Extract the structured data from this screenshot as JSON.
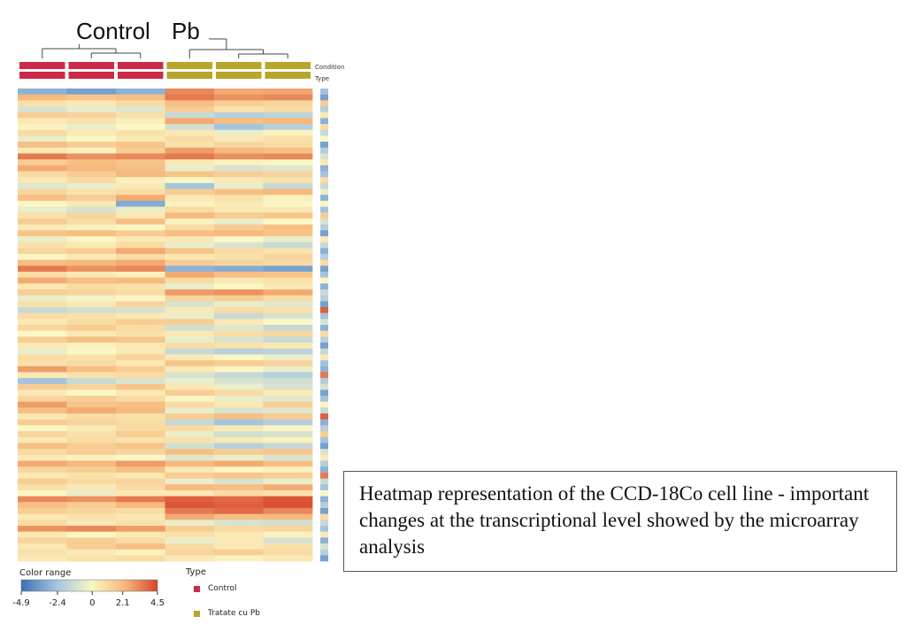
{
  "chart_data": {
    "type": "heatmap",
    "title": "",
    "groups": [
      "Control",
      "Pb"
    ],
    "columns": [
      "Control",
      "Control",
      "Control",
      "Tratate cu Pb",
      "Tratate cu Pb",
      "Tratate cu Pb"
    ],
    "annotation_tracks": [
      "Condition",
      "Type"
    ],
    "color_range": {
      "title": "Color range",
      "min": -4.9,
      "max": 4.5,
      "ticks": [
        "-4.9",
        "-2.4",
        "0",
        "2.1",
        "4.5"
      ]
    },
    "row_count": 80,
    "type_legend": {
      "title": "Type",
      "items": [
        {
          "label": "Control",
          "color": "#cc2a4a"
        },
        {
          "label": "Tratate cu Pb",
          "color": "#b8a52a"
        }
      ]
    },
    "values": [
      [
        -3.0,
        -3.5,
        -3.0,
        3.2,
        2.5,
        2.6
      ],
      [
        2.2,
        1.8,
        2.0,
        3.5,
        3.0,
        3.2
      ],
      [
        0.8,
        0.5,
        1.0,
        2.0,
        1.5,
        1.2
      ],
      [
        -1.0,
        -0.5,
        -0.8,
        1.5,
        0.8,
        1.0
      ],
      [
        1.5,
        1.2,
        0.8,
        -1.5,
        -2.0,
        -1.8
      ],
      [
        0.5,
        0.8,
        0.3,
        2.5,
        2.0,
        2.2
      ],
      [
        0.2,
        -0.5,
        0.0,
        -1.2,
        -2.5,
        -2.0
      ],
      [
        1.0,
        0.5,
        0.8,
        0.5,
        -0.5,
        0.2
      ],
      [
        -0.5,
        0.0,
        0.5,
        1.0,
        0.5,
        0.8
      ],
      [
        2.0,
        1.5,
        1.8,
        0.8,
        1.2,
        1.0
      ],
      [
        0.5,
        0.2,
        1.5,
        2.8,
        2.2,
        2.0
      ],
      [
        3.5,
        3.0,
        3.2,
        3.5,
        3.0,
        3.2
      ],
      [
        1.5,
        2.0,
        1.8,
        0.5,
        0.2,
        0.0
      ],
      [
        2.5,
        2.2,
        2.0,
        -0.5,
        -1.0,
        -0.8
      ],
      [
        1.0,
        1.5,
        2.2,
        1.8,
        1.5,
        1.2
      ],
      [
        0.5,
        1.0,
        0.2,
        0.0,
        0.5,
        0.8
      ],
      [
        -0.8,
        -0.5,
        0.5,
        -2.5,
        -0.5,
        -1.5
      ],
      [
        1.2,
        0.8,
        1.0,
        1.5,
        2.0,
        2.2
      ],
      [
        2.0,
        1.5,
        2.5,
        0.5,
        0.8,
        0.2
      ],
      [
        0.0,
        0.5,
        -3.2,
        0.2,
        0.5,
        0.0
      ],
      [
        -0.5,
        -1.0,
        -0.5,
        1.0,
        0.5,
        0.5
      ],
      [
        0.8,
        1.2,
        0.5,
        2.2,
        1.5,
        1.8
      ],
      [
        1.5,
        1.0,
        2.0,
        0.2,
        -0.5,
        0.0
      ],
      [
        0.5,
        0.2,
        0.0,
        1.0,
        1.5,
        2.0
      ],
      [
        1.8,
        2.0,
        1.5,
        2.0,
        2.2,
        1.8
      ],
      [
        -0.5,
        0.0,
        0.5,
        0.5,
        0.0,
        -0.5
      ],
      [
        0.8,
        0.5,
        1.0,
        -0.5,
        -1.0,
        -1.5
      ],
      [
        1.2,
        1.5,
        2.5,
        1.8,
        1.0,
        0.8
      ],
      [
        0.0,
        0.5,
        1.0,
        0.5,
        0.8,
        1.2
      ],
      [
        2.0,
        2.2,
        2.5,
        1.5,
        1.2,
        1.0
      ],
      [
        3.5,
        3.0,
        3.2,
        -3.0,
        -3.2,
        -3.5
      ],
      [
        1.0,
        0.5,
        0.2,
        2.5,
        2.0,
        1.8
      ],
      [
        2.5,
        2.0,
        2.2,
        1.0,
        0.5,
        0.8
      ],
      [
        0.5,
        1.0,
        0.8,
        -0.5,
        0.0,
        0.5
      ],
      [
        1.5,
        1.2,
        1.0,
        2.8,
        3.0,
        2.5
      ],
      [
        -0.5,
        -0.2,
        0.0,
        1.2,
        1.5,
        1.0
      ],
      [
        0.8,
        0.5,
        1.2,
        -1.0,
        -0.5,
        -0.8
      ],
      [
        -1.5,
        -1.2,
        -1.0,
        0.5,
        1.0,
        0.8
      ],
      [
        1.0,
        0.8,
        0.5,
        -0.5,
        -1.5,
        -1.0
      ],
      [
        0.5,
        1.0,
        1.5,
        1.5,
        0.5,
        0.0
      ],
      [
        1.2,
        1.5,
        1.0,
        -1.2,
        -0.8,
        -1.5
      ],
      [
        0.0,
        0.5,
        0.8,
        0.5,
        1.0,
        1.2
      ],
      [
        1.5,
        2.0,
        1.8,
        -0.5,
        -1.0,
        -1.5
      ],
      [
        0.5,
        0.2,
        0.5,
        1.0,
        0.8,
        0.5
      ],
      [
        -0.5,
        0.0,
        0.5,
        -1.5,
        -2.0,
        -1.8
      ],
      [
        1.0,
        0.8,
        1.2,
        0.5,
        0.0,
        -0.5
      ],
      [
        0.8,
        1.0,
        0.5,
        1.8,
        1.5,
        1.2
      ],
      [
        2.8,
        2.0,
        1.5,
        0.5,
        0.0,
        -0.5
      ],
      [
        0.5,
        0.8,
        1.0,
        -1.0,
        -1.5,
        -2.0
      ],
      [
        -2.5,
        -1.5,
        -1.0,
        -0.5,
        -1.0,
        -1.2
      ],
      [
        1.5,
        1.2,
        1.8,
        0.5,
        -0.5,
        -1.0
      ],
      [
        0.5,
        0.0,
        0.5,
        1.5,
        1.0,
        0.5
      ],
      [
        1.2,
        1.5,
        1.0,
        0.0,
        -0.5,
        -0.8
      ],
      [
        2.8,
        1.8,
        2.0,
        1.0,
        0.5,
        1.5
      ],
      [
        2.0,
        2.5,
        2.2,
        -0.5,
        -1.0,
        -0.8
      ],
      [
        0.5,
        1.0,
        0.8,
        1.5,
        2.0,
        1.5
      ],
      [
        1.5,
        1.2,
        1.0,
        -1.5,
        -2.5,
        -2.0
      ],
      [
        0.0,
        0.5,
        1.0,
        1.0,
        0.5,
        0.0
      ],
      [
        1.2,
        0.8,
        1.5,
        -0.5,
        -1.2,
        -1.0
      ],
      [
        0.5,
        1.0,
        0.8,
        0.8,
        0.5,
        0.2
      ],
      [
        2.0,
        1.5,
        1.8,
        -1.2,
        -2.0,
        -1.5
      ],
      [
        1.0,
        1.5,
        1.2,
        2.0,
        1.5,
        1.8
      ],
      [
        0.5,
        0.2,
        0.0,
        -0.8,
        -0.5,
        -1.0
      ],
      [
        2.5,
        2.2,
        2.8,
        2.2,
        2.5,
        2.0
      ],
      [
        1.2,
        1.5,
        2.0,
        0.5,
        0.0,
        0.2
      ],
      [
        0.5,
        0.8,
        0.5,
        1.5,
        1.8,
        1.5
      ],
      [
        1.5,
        1.0,
        1.2,
        -0.5,
        -1.0,
        -0.5
      ],
      [
        0.8,
        0.5,
        1.0,
        2.2,
        2.0,
        2.5
      ],
      [
        0.0,
        -0.5,
        0.5,
        0.5,
        1.0,
        0.8
      ],
      [
        3.2,
        3.0,
        3.5,
        4.0,
        3.8,
        4.2
      ],
      [
        2.0,
        1.5,
        2.2,
        4.2,
        4.0,
        4.3
      ],
      [
        1.5,
        1.2,
        1.0,
        3.5,
        3.8,
        3.2
      ],
      [
        0.5,
        0.8,
        0.5,
        2.5,
        2.0,
        2.2
      ],
      [
        1.0,
        0.5,
        0.8,
        -0.5,
        -1.0,
        -1.2
      ],
      [
        3.0,
        3.2,
        2.8,
        1.5,
        1.0,
        1.2
      ],
      [
        0.5,
        0.0,
        0.5,
        0.8,
        0.5,
        0.2
      ],
      [
        1.2,
        1.5,
        1.0,
        -0.5,
        0.5,
        -1.0
      ],
      [
        0.5,
        1.5,
        2.0,
        1.0,
        0.5,
        0.8
      ],
      [
        0.8,
        0.5,
        0.2,
        1.2,
        1.5,
        1.0
      ],
      [
        0.5,
        0.8,
        1.0,
        0.5,
        0.2,
        0.5
      ]
    ],
    "type_track": [
      -2.5,
      -3.5,
      1.5,
      -2.0,
      0.5,
      -3.0,
      1.0,
      -1.5,
      0.0,
      -3.5,
      -2.0,
      -1.0,
      0.5,
      -3.0,
      -2.5,
      1.0,
      -1.5,
      -0.5,
      -3.0,
      0.0,
      -2.5,
      1.5,
      -1.0,
      -2.0,
      -3.5,
      0.5,
      -1.5,
      -3.0,
      -2.0,
      1.0,
      -3.5,
      -2.5,
      0.0,
      -3.0,
      -1.5,
      -2.0,
      -3.5,
      4.0,
      -2.5,
      -1.0,
      -3.0,
      1.0,
      -2.0,
      -3.5,
      -1.5,
      0.5,
      -2.5,
      -3.0,
      3.5,
      -2.0,
      -1.0,
      -3.5,
      -2.5,
      0.0,
      -1.5,
      4.0,
      -3.0,
      -2.0,
      1.5,
      -2.5,
      -3.5,
      -1.0,
      0.5,
      -2.0,
      -3.0,
      3.5,
      -1.5,
      -2.5,
      0.0,
      -3.0,
      -2.0,
      -3.5,
      1.0,
      -1.5,
      -2.5,
      0.5,
      -3.0,
      -1.0,
      -2.0,
      -3.5
    ]
  },
  "labels": {
    "control_group": "Control",
    "pb_group": "Pb",
    "condition_track": "Condition",
    "type_track": "Type"
  },
  "caption": {
    "text": "Heatmap representation of the CCD-18Co cell line - important changes at the transcriptional level showed by the microarray analysis"
  },
  "colors": {
    "control": "#cc2a4a",
    "pb": "#b8a52a",
    "low": "#3b6fb6",
    "mid": "#fbf7c4",
    "high": "#d7462c"
  }
}
